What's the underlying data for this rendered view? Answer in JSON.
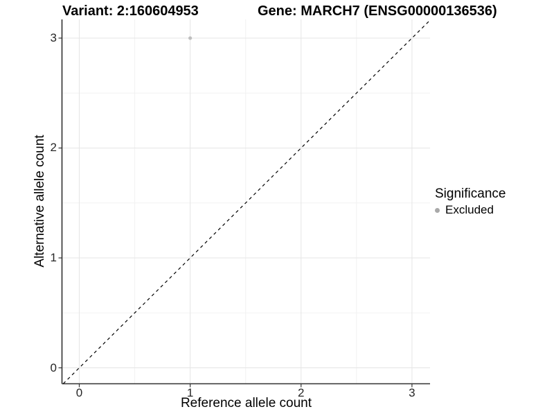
{
  "chart_data": {
    "type": "scatter",
    "titles": {
      "left": "Variant: 2:160604953",
      "right": "Gene: MARCH7 (ENSG00000136536)"
    },
    "xlabel": "Reference allele count",
    "ylabel": "Alternative allele count",
    "xlim": [
      -0.156,
      3.163
    ],
    "ylim": [
      -0.145,
      3.17
    ],
    "xticks": [
      0,
      1,
      2,
      3
    ],
    "yticks": [
      0,
      1,
      2,
      3
    ],
    "xticks_minor": [
      0.5,
      1.5,
      2.5
    ],
    "yticks_minor": [
      0.5,
      1.5,
      2.5
    ],
    "grid": true,
    "points": [
      {
        "x": 1,
        "y": 3,
        "significance": "Excluded"
      }
    ],
    "abline": {
      "slope": 1,
      "intercept": 0,
      "style": "dashed"
    },
    "legend": {
      "title": "Significance",
      "position": "right",
      "items": [
        {
          "label": "Excluded",
          "color": "#a9a9a9",
          "marker": "circle"
        }
      ]
    },
    "colors": {
      "point": "#bebebe",
      "grid_major": "#e5e5e5",
      "grid_minor": "#f2f2f2",
      "axis_line": "#303030",
      "tick_mark": "#333333",
      "abline": "#000000",
      "background": "#ffffff"
    }
  }
}
